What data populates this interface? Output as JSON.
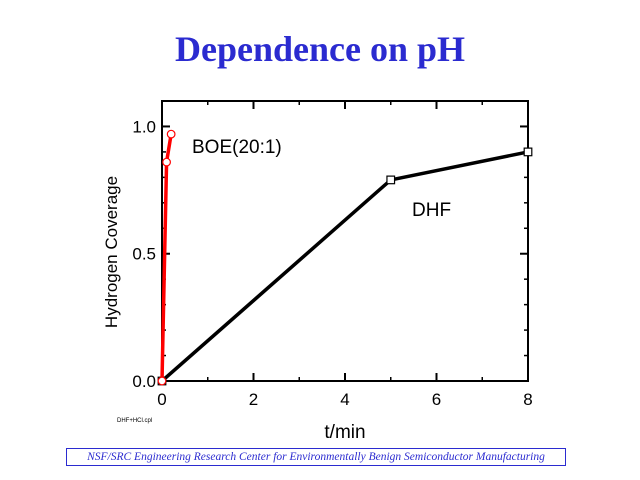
{
  "slide": {
    "title": "Dependence on pH",
    "footer": "NSF/SRC Engineering Research Center for Environmentally Benign Semiconductor Manufacturing",
    "file_tag": "DHF+HCl.cpl"
  },
  "chart_data": {
    "type": "line",
    "title": "",
    "xlabel": "t/min",
    "ylabel": "Hydrogen Coverage",
    "xlim": [
      0,
      8
    ],
    "ylim": [
      0,
      1.1
    ],
    "xticks": [
      0,
      2,
      4,
      6,
      8
    ],
    "xtick_labels": [
      "0",
      "2",
      "4",
      "6",
      "8"
    ],
    "yticks": [
      0.0,
      0.5,
      1.0
    ],
    "ytick_labels": [
      "0.0",
      "0.5",
      "1.0"
    ],
    "grid": false,
    "series": [
      {
        "name": "BOE(20:1)",
        "color": "#ff0000",
        "marker": "circle",
        "x": [
          0,
          0.1,
          0.2
        ],
        "y": [
          0,
          0.86,
          0.97
        ]
      },
      {
        "name": "DHF",
        "color": "#000000",
        "marker": "square",
        "x": [
          0,
          5,
          8
        ],
        "y": [
          0,
          0.79,
          0.9
        ]
      }
    ],
    "annotations": [
      "BOE(20:1)",
      "DHF"
    ]
  }
}
